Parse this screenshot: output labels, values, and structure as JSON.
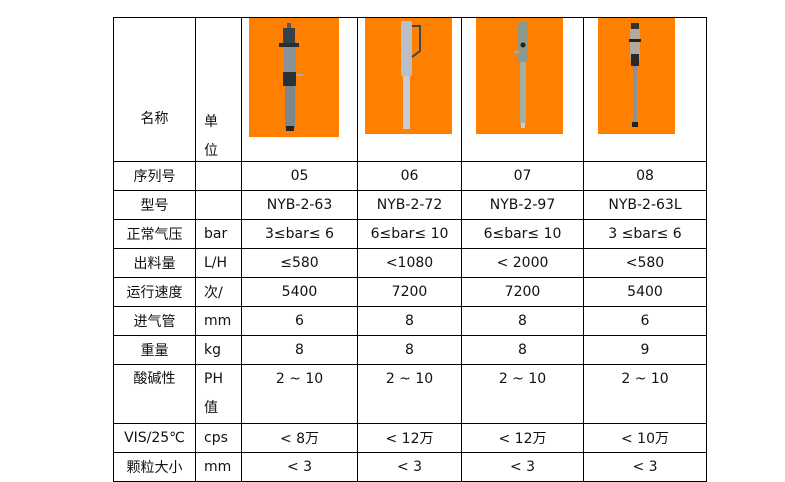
{
  "header": {
    "name_label": "名称",
    "unit_label_1": "单",
    "unit_label_2": "位"
  },
  "products": [
    {
      "image": "air-pump-05-photo",
      "image_bg": "#ff8000"
    },
    {
      "image": "air-pump-06-photo",
      "image_bg": "#ff8000"
    },
    {
      "image": "air-pump-07-photo",
      "image_bg": "#ff8000"
    },
    {
      "image": "air-pump-08-photo",
      "image_bg": "#ff8000"
    }
  ],
  "rows": [
    {
      "name": "序列号",
      "unit": "",
      "values": [
        "05",
        "06",
        "07",
        "08"
      ]
    },
    {
      "name": "型号",
      "unit": "",
      "values": [
        "NYB-2-63",
        "NYB-2-72",
        "NYB-2-97",
        "NYB-2-63L"
      ]
    },
    {
      "name": "正常气压",
      "unit": "bar",
      "values": [
        "3≤bar≤ 6",
        "6≤bar≤ 10",
        "6≤bar≤ 10",
        "3 ≤bar≤ 6"
      ]
    },
    {
      "name": "出料量",
      "unit": "L/H",
      "values": [
        "≤580",
        "<1080",
        "< 2000",
        "<580"
      ]
    },
    {
      "name": "运行速度",
      "unit": "次/",
      "values": [
        "5400",
        "7200",
        "7200",
        "5400"
      ]
    },
    {
      "name": "进气管",
      "unit": "mm",
      "values": [
        "6",
        "8",
        "8",
        "6"
      ]
    },
    {
      "name": "重量",
      "unit": "kg",
      "values": [
        "8",
        "8",
        "8",
        "9"
      ]
    },
    {
      "name": "酸碱性",
      "unit": "PH",
      "unit2": "值",
      "values": [
        "2 ~ 10",
        "2 ~ 10",
        "2 ~ 10",
        "2 ~ 10"
      ]
    },
    {
      "name": "VIS/25℃",
      "unit": "cps",
      "values": [
        "< 8万",
        "< 12万",
        "< 12万",
        "< 10万"
      ]
    },
    {
      "name": "颗粒大小",
      "unit": "mm",
      "values": [
        "< 3",
        "< 3",
        "< 3",
        "< 3"
      ]
    }
  ]
}
